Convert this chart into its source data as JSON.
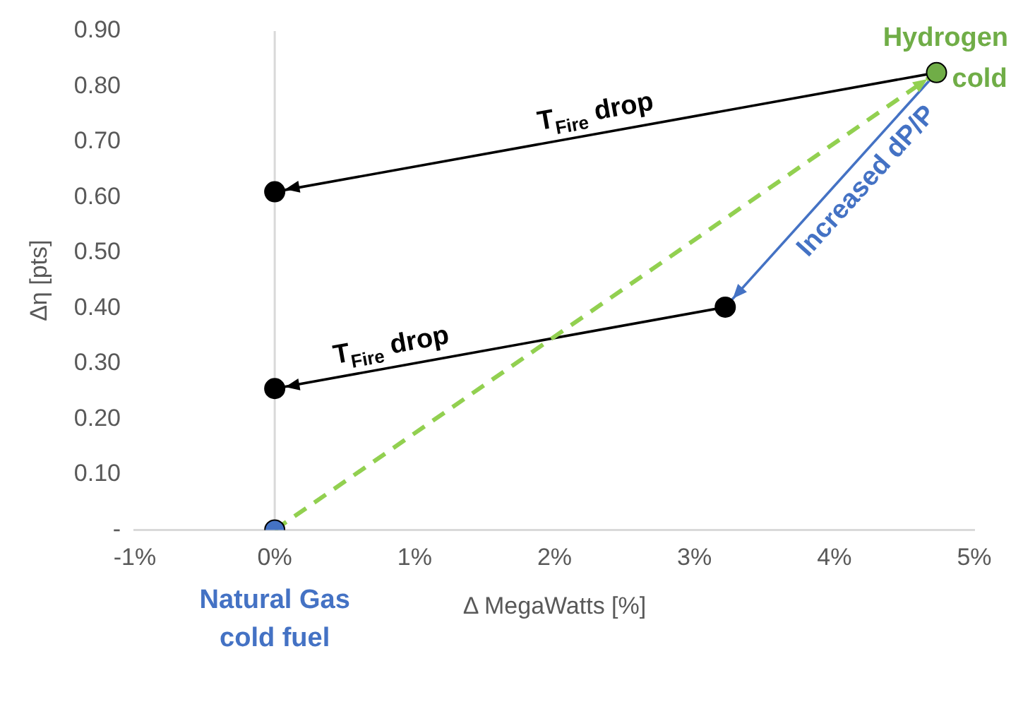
{
  "chart_data": {
    "type": "scatter",
    "xlabel": "Δ MegaWatts [%]",
    "ylabel": "Δη [pts]",
    "xlim": [
      -1,
      5
    ],
    "xticks": [
      {
        "value": -1,
        "label": "-1%"
      },
      {
        "value": 0,
        "label": "0%"
      },
      {
        "value": 1,
        "label": "1%"
      },
      {
        "value": 2,
        "label": "2%"
      },
      {
        "value": 3,
        "label": "3%"
      },
      {
        "value": 4,
        "label": "4%"
      },
      {
        "value": 5,
        "label": "5%"
      }
    ],
    "ylim": [
      0,
      0.9
    ],
    "yticks": [
      {
        "value": 0,
        "label": "-"
      },
      {
        "value": 0.1,
        "label": "0.10"
      },
      {
        "value": 0.2,
        "label": "0.20"
      },
      {
        "value": 0.3,
        "label": "0.30"
      },
      {
        "value": 0.4,
        "label": "0.40"
      },
      {
        "value": 0.5,
        "label": "0.50"
      },
      {
        "value": 0.6,
        "label": "0.60"
      },
      {
        "value": 0.7,
        "label": "0.70"
      },
      {
        "value": 0.8,
        "label": "0.80"
      },
      {
        "value": 0.9,
        "label": "0.90"
      }
    ],
    "series": [
      {
        "type": "line",
        "x": [
          0,
          4.73
        ],
        "values": [
          0,
          0.825
        ],
        "color": "#92d050",
        "line_style": "dashed",
        "marker": "none"
      },
      {
        "type": "line",
        "x": [
          4.73,
          0
        ],
        "values": [
          0.825,
          0.61
        ],
        "color": "#000000",
        "marker": "none"
      },
      {
        "type": "line",
        "x": [
          3.22,
          0
        ],
        "values": [
          0.402,
          0.255
        ],
        "color": "#000000",
        "marker": "none"
      },
      {
        "type": "line",
        "x": [
          4.73,
          3.22
        ],
        "values": [
          0.825,
          0.402
        ],
        "color": "#4472c4",
        "marker": "none"
      },
      {
        "x": [
          0,
          4.73,
          0,
          3.22,
          0
        ],
        "values": [
          0,
          0.825,
          0.61,
          0.402,
          0.255
        ],
        "colors": [
          "#4472c4",
          "#70ad47",
          "#000000",
          "#000000",
          "#000000"
        ],
        "marker": "circle"
      }
    ],
    "annotations": [
      {
        "text": "Natural Gas cold fuel",
        "x": 0,
        "y": 0
      },
      {
        "text": "Hydrogen cold",
        "x": 4.73,
        "y": 0.825
      },
      {
        "text": "T$_{Fire}$ drop",
        "x": 2.32,
        "y": 0.7155
      },
      {
        "text": "T$_{Fire}$ drop",
        "x": 0.86,
        "y": 0.294
      },
      {
        "text": "Increased dP/P",
        "x": 4.12,
        "y": 0.654
      }
    ]
  }
}
